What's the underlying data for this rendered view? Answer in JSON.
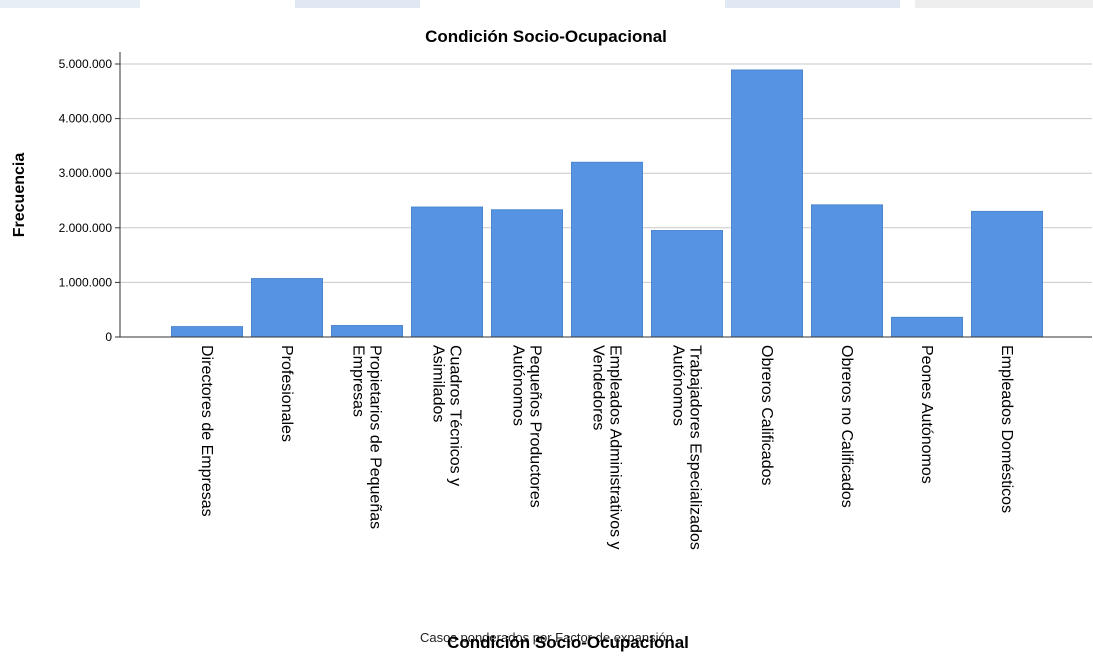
{
  "colors": {
    "bar": "#5694e3",
    "bar_stroke": "#4a85d0",
    "grid": "#c8c8c8",
    "axis": "#333333"
  },
  "footer_note": "Casos ponderados por Factor de expansión",
  "chart_data": {
    "type": "bar",
    "title": "Condición Socio-Ocupacional",
    "xlabel": "Condición Socio-Ocupacional",
    "ylabel": "Frecuencia",
    "ylim": [
      0,
      5000000
    ],
    "yticks": [
      0,
      1000000,
      2000000,
      3000000,
      4000000,
      5000000
    ],
    "ytick_labels": [
      "0",
      "1.000.000",
      "2.000.000",
      "3.000.000",
      "4.000.000",
      "5.000.000"
    ],
    "grid": true,
    "categories": [
      "Directores de Empresas",
      "Profesionales",
      "Propietarios de Pequeñas Empresas",
      "Cuadros Técnicos y Asimilados",
      "Pequeños Productores Autónomos",
      "Empleados Administrativos y Vendedores",
      "Trabajadores Especializados Autónomos",
      "Obreros Calificados",
      "Obreros no Calificados",
      "Peones Autónomos",
      "Empleados Domésticos"
    ],
    "category_lines": [
      [
        "Directores de Empresas"
      ],
      [
        "Profesionales"
      ],
      [
        "Propietarios de Pequeñas",
        "Empresas"
      ],
      [
        "Cuadros Técnicos y",
        "Asimilados"
      ],
      [
        "Pequeños Productores",
        "Autónomos"
      ],
      [
        "Empleados Administrativos y",
        "Vendedores"
      ],
      [
        "Trabajadores Especializados",
        "Autónomos"
      ],
      [
        "Obreros Calificados"
      ],
      [
        "Obreros no Calificados"
      ],
      [
        "Peones Autónomos"
      ],
      [
        "Empleados Domésticos"
      ]
    ],
    "values": [
      190000,
      1070000,
      210000,
      2380000,
      2330000,
      3200000,
      1950000,
      4890000,
      2420000,
      360000,
      2300000
    ]
  }
}
